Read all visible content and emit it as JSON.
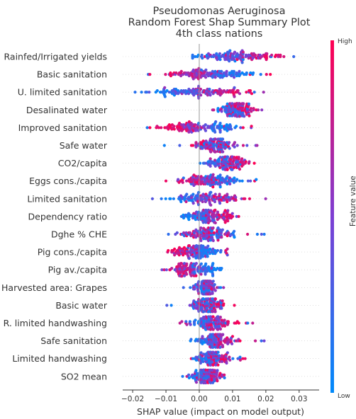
{
  "chart_data": {
    "type": "scatter",
    "subtype": "shap-beeswarm",
    "title": [
      "Pseudomonas Aeruginosa",
      "Random Forest Shap Summary Plot",
      "4th class nations"
    ],
    "xlabel": "SHAP value (impact on model output)",
    "xlim": [
      -0.023,
      0.036
    ],
    "xticks": [
      -0.02,
      -0.01,
      0.0,
      0.01,
      0.02,
      0.03
    ],
    "xtick_labels": [
      "−0.02",
      "−0.01",
      "0.00",
      "0.01",
      "0.02",
      "0.03"
    ],
    "colorbar": {
      "high_label": "High",
      "low_label": "Low",
      "title": "Feature value",
      "low_color": "#008afb",
      "mid_color": "#7d3ed3",
      "high_color": "#ff0052"
    },
    "features": [
      {
        "name": "Rainfed/Irrigated yields",
        "min": -0.002,
        "max": 0.034,
        "low_center": 0.003,
        "high_center": 0.02,
        "spread": 0.008
      },
      {
        "name": "Basic sanitation",
        "min": -0.018,
        "max": 0.023,
        "low_center": 0.012,
        "high_center": -0.008,
        "spread": 0.007
      },
      {
        "name": "U. limited sanitation",
        "min": -0.021,
        "max": 0.027,
        "low_center": -0.012,
        "high_center": 0.012,
        "spread": 0.008
      },
      {
        "name": "Desalinated water",
        "min": 0.004,
        "max": 0.019,
        "low_center": 0.009,
        "high_center": 0.013,
        "spread": 0.004
      },
      {
        "name": "Improved sanitation",
        "min": -0.016,
        "max": 0.017,
        "low_center": 0.008,
        "high_center": -0.008,
        "spread": 0.006
      },
      {
        "name": "Safe water",
        "min": -0.011,
        "max": 0.02,
        "low_center": 0.006,
        "high_center": 0.003,
        "spread": 0.005
      },
      {
        "name": "CO2/capita",
        "min": -0.004,
        "max": 0.019,
        "low_center": 0.006,
        "high_center": 0.01,
        "spread": 0.005
      },
      {
        "name": "Eggs cons./capita",
        "min": -0.01,
        "max": 0.019,
        "low_center": 0.008,
        "high_center": -0.003,
        "spread": 0.006
      },
      {
        "name": "Limited sanitation",
        "min": -0.016,
        "max": 0.02,
        "low_center": -0.004,
        "high_center": 0.009,
        "spread": 0.007
      },
      {
        "name": "Dependency ratio",
        "min": -0.008,
        "max": 0.018,
        "low_center": -0.002,
        "high_center": 0.008,
        "spread": 0.005
      },
      {
        "name": "Dghe % CHE",
        "min": -0.013,
        "max": 0.022,
        "low_center": 0.004,
        "high_center": 0.002,
        "spread": 0.006
      },
      {
        "name": "Pig cons./capita",
        "min": -0.013,
        "max": 0.01,
        "low_center": 0.003,
        "high_center": -0.007,
        "spread": 0.004
      },
      {
        "name": "Pig av./capita",
        "min": -0.013,
        "max": 0.011,
        "low_center": 0.003,
        "high_center": -0.007,
        "spread": 0.004
      },
      {
        "name": "Harvested area: Grapes",
        "min": -0.005,
        "max": 0.01,
        "low_center": 0.001,
        "high_center": 0.003,
        "spread": 0.003
      },
      {
        "name": "Basic water",
        "min": -0.01,
        "max": 0.012,
        "low_center": 0.001,
        "high_center": 0.004,
        "spread": 0.004
      },
      {
        "name": "R. limited handwashing",
        "min": -0.007,
        "max": 0.017,
        "low_center": 0.001,
        "high_center": 0.006,
        "spread": 0.004
      },
      {
        "name": "Safe sanitation",
        "min": -0.003,
        "max": 0.021,
        "low_center": 0.002,
        "high_center": 0.008,
        "spread": 0.004
      },
      {
        "name": "Limited handwashing",
        "min": -0.004,
        "max": 0.014,
        "low_center": 0.002,
        "high_center": 0.006,
        "spread": 0.004
      },
      {
        "name": "SO2 mean",
        "min": -0.007,
        "max": 0.012,
        "low_center": 0.0,
        "high_center": 0.004,
        "spread": 0.004
      }
    ],
    "points_per_feature": 130,
    "grid": false
  }
}
